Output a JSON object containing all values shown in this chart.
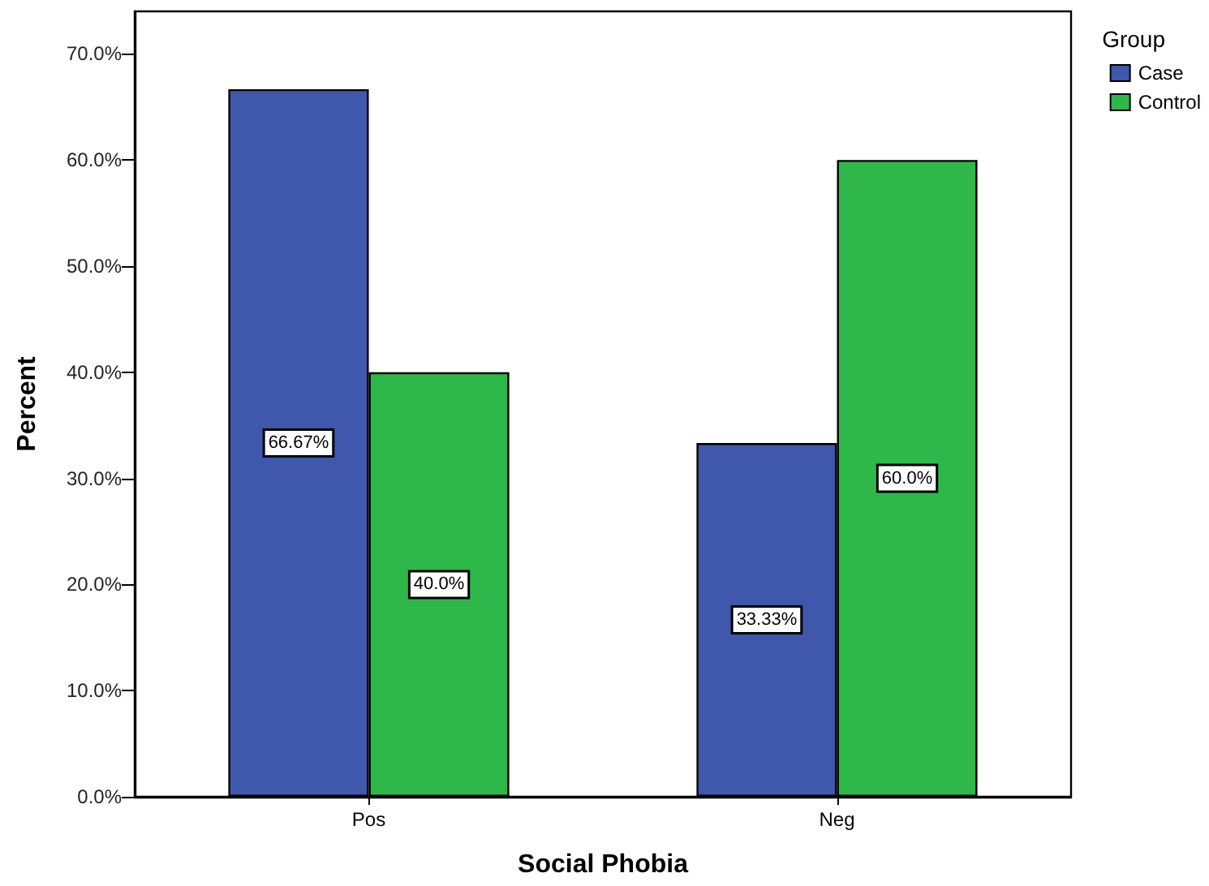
{
  "chart_data": {
    "type": "bar",
    "xlabel": "Social Phobia",
    "ylabel": "Percent",
    "legend_title": "Group",
    "legend": "top right",
    "grid": false,
    "categories": [
      "Pos",
      "Neg"
    ],
    "series": [
      {
        "name": "Case",
        "color": "#3f58ab",
        "values": [
          66.67,
          33.33
        ],
        "value_labels": [
          "66.67%",
          "33.33%"
        ]
      },
      {
        "name": "Control",
        "color": "#2fb84a",
        "values": [
          40.0,
          60.0
        ],
        "value_labels": [
          "40.0%",
          "60.0%"
        ]
      }
    ],
    "ylim": [
      0,
      74
    ],
    "yticks": [
      {
        "value": 0,
        "label": "0.0%"
      },
      {
        "value": 10,
        "label": "10.0%"
      },
      {
        "value": 20,
        "label": "20.0%"
      },
      {
        "value": 30,
        "label": "30.0%"
      },
      {
        "value": 40,
        "label": "40.0%"
      },
      {
        "value": 50,
        "label": "50.0%"
      },
      {
        "value": 60,
        "label": "60.0%"
      },
      {
        "value": 70,
        "label": "70.0%"
      }
    ]
  }
}
